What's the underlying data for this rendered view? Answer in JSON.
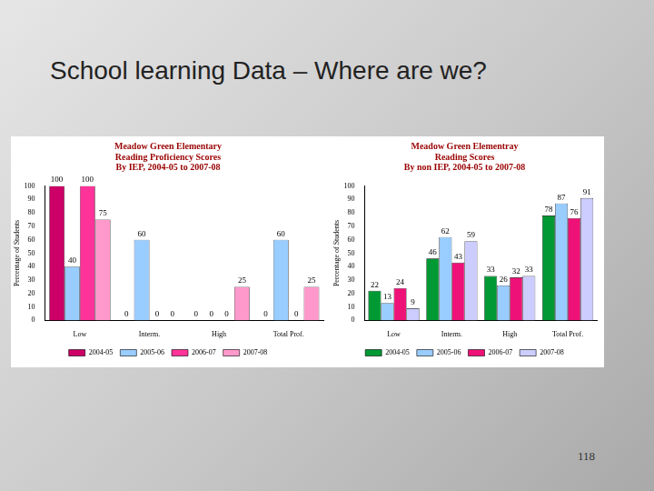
{
  "slide": {
    "title": "School learning Data – Where are we?",
    "page_number": "118"
  },
  "chart_data": [
    {
      "type": "bar",
      "title": [
        "Meadow Green Elementary",
        "Reading Proficiency Scores",
        "By IEP, 2004-05 to 2007-08"
      ],
      "y_label": "Percentage of Students",
      "categories": [
        "Low",
        "Interm.",
        "High",
        "Total Prof."
      ],
      "series": [
        {
          "name": "2004-05",
          "color": "#cc0066",
          "values": [
            100,
            0,
            0,
            0
          ]
        },
        {
          "name": "2005-06",
          "color": "#99ccff",
          "values": [
            40,
            60,
            0,
            60
          ]
        },
        {
          "name": "2006-07",
          "color": "#ff3399",
          "values": [
            100,
            0,
            0,
            0
          ]
        },
        {
          "name": "2007-08",
          "color": "#ff99cc",
          "values": [
            75,
            0,
            25,
            25
          ]
        }
      ],
      "ylim": [
        0,
        100
      ],
      "yticks": [
        0,
        10,
        20,
        30,
        40,
        50,
        60,
        70,
        80,
        90,
        100
      ],
      "grid": false,
      "legend": "bottom",
      "data_labels": true
    },
    {
      "type": "bar",
      "title": [
        "Meadow Green Elementray",
        "Reading Scores",
        "By non IEP, 2004-05 to 2007-08"
      ],
      "y_label": "Percentage of Students",
      "categories": [
        "Low",
        "Interm.",
        "High",
        "Total Prof."
      ],
      "series": [
        {
          "name": "2004-05",
          "color": "#009933",
          "values": [
            22,
            46,
            33,
            78
          ]
        },
        {
          "name": "2005-06",
          "color": "#99ccff",
          "values": [
            13,
            62,
            26,
            87
          ]
        },
        {
          "name": "2006-07",
          "color": "#ee1177",
          "values": [
            24,
            43,
            32,
            76
          ]
        },
        {
          "name": "2007-08",
          "color": "#ccccff",
          "values": [
            9,
            59,
            33,
            91
          ]
        }
      ],
      "ylim": [
        0,
        100
      ],
      "yticks": [
        0,
        10,
        20,
        30,
        40,
        50,
        60,
        70,
        80,
        90,
        100
      ],
      "grid": false,
      "legend": "bottom",
      "data_labels": true
    }
  ]
}
